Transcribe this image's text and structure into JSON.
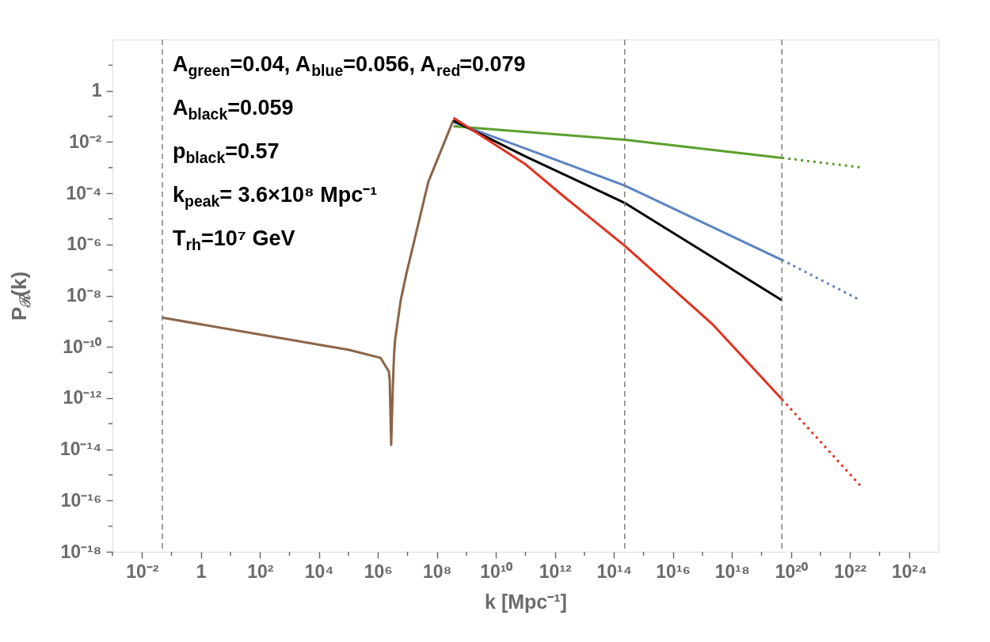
{
  "chart_data": {
    "type": "line",
    "xlabel": "k [Mpc⁻¹]",
    "ylabel": "P$_{ℛ}$(k)",
    "xlim": [
      0.001,
      1e+25
    ],
    "ylim": [
      1e-18,
      100
    ],
    "xticks": [
      {
        "value": 0.001,
        "label": null
      },
      {
        "value": 0.01,
        "label": "10⁻²"
      },
      {
        "value": 0.1,
        "label": null
      },
      1,
      {
        "value": 10,
        "label": null
      },
      {
        "value": 100,
        "label": "10²"
      },
      {
        "value": 1000,
        "label": null
      },
      {
        "value": 10000.0,
        "label": "10⁴"
      },
      {
        "value": 100000.0,
        "label": null
      },
      {
        "value": 1000000.0,
        "label": "10⁶"
      },
      {
        "value": 10000000.0,
        "label": null
      },
      {
        "value": 100000000.0,
        "label": "10⁸"
      },
      {
        "value": 1000000000.0,
        "label": null
      },
      {
        "value": 10000000000.0,
        "label": "10¹⁰"
      },
      {
        "value": 100000000000.0,
        "label": null
      },
      {
        "value": 1000000000000.0,
        "label": "10¹²"
      },
      {
        "value": 10000000000000.0,
        "label": null
      },
      {
        "value": 100000000000000.0,
        "label": "10¹⁴"
      },
      {
        "value": 1000000000000000.0,
        "label": null
      },
      {
        "value": 1e+16,
        "label": "10¹⁶"
      },
      {
        "value": 1e+17,
        "label": null
      },
      {
        "value": 1e+18,
        "label": "10¹⁸"
      },
      {
        "value": 1e+19,
        "label": null
      },
      {
        "value": 1e+20,
        "label": "10²⁰"
      },
      {
        "value": 1e+21,
        "label": null
      },
      {
        "value": 1e+22,
        "label": "10²²"
      },
      {
        "value": 1e+23,
        "label": null
      },
      {
        "value": 1e+24,
        "label": "10²⁴"
      }
    ],
    "yticks": [
      {
        "value": 10,
        "label": null
      },
      1,
      {
        "value": 0.1,
        "label": null
      },
      {
        "value": 0.01,
        "label": "10⁻²"
      },
      {
        "value": 0.001,
        "label": null
      },
      {
        "value": 0.0001,
        "label": "10⁻⁴"
      },
      {
        "value": 1e-05,
        "label": null
      },
      {
        "value": 1e-06,
        "label": "10⁻⁶"
      },
      {
        "value": 1e-07,
        "label": null
      },
      {
        "value": 1e-08,
        "label": "10⁻⁸"
      },
      {
        "value": 1e-09,
        "label": null
      },
      {
        "value": 1e-10,
        "label": "10⁻¹⁰"
      },
      {
        "value": 1e-11,
        "label": null
      },
      {
        "value": 1e-12,
        "label": "10⁻¹²"
      },
      {
        "value": 1e-13,
        "label": null
      },
      {
        "value": 1e-14,
        "label": "10⁻¹⁴"
      },
      {
        "value": 1e-15,
        "label": null
      },
      {
        "value": 1e-16,
        "label": "10⁻¹⁶"
      },
      {
        "value": 1e-17,
        "label": null
      },
      {
        "value": 1e-18,
        "label": "10⁻¹⁸"
      }
    ],
    "log": "xy",
    "grid": false,
    "legend": false,
    "marker": "none",
    "series": [
      {
        "color": "#8c6447",
        "line_style": "solid",
        "x": [
          0.049,
          105000.0,
          1230000.0,
          2340000.0,
          2500000.0,
          2800000.0,
          3200000.0,
          3500000.0,
          3800000.0,
          5900000.0,
          9100000.0,
          51000000.0,
          360000000.0
        ],
        "values": [
          1.38e-09,
          7.6e-11,
          3.7e-11,
          1.1e-11,
          5e-12,
          1.5e-14,
          3.2e-12,
          5e-11,
          1.9e-10,
          6.6e-09,
          6.9e-08,
          0.00028,
          0.072
        ]
      },
      {
        "color": "#5aa02c",
        "line_style": "solid",
        "x": [
          360000000.0,
          230000000000000.0,
          4.9e+19
        ],
        "values": [
          0.041,
          0.0123,
          0.0024
        ]
      },
      {
        "color": "#5aa02c",
        "line_style": "dotted",
        "x": [
          4.9e+19,
          2.4e+22
        ],
        "values": [
          0.0024,
          0.00102
        ]
      },
      {
        "color": "#5b84c4",
        "line_style": "solid",
        "x": [
          360000000.0,
          100000000000.0,
          230000000000000.0,
          4.9e+19
        ],
        "values": [
          0.059,
          0.0056,
          0.0002,
          2.5e-07
        ]
      },
      {
        "color": "#5b84c4",
        "line_style": "dotted",
        "x": [
          4.9e+19,
          2e+22
        ],
        "values": [
          2.5e-07,
          7.1e-09
        ]
      },
      {
        "color": "#000000",
        "line_style": "solid",
        "x": [
          360000000.0,
          100000000000.0,
          230000000000000.0,
          4.9e+19
        ],
        "values": [
          0.068,
          0.00275,
          4.2e-05,
          6.6e-09
        ]
      },
      {
        "color": "#e1331f",
        "line_style": "solid",
        "x": [
          360000000.0,
          100000000000.0,
          2200000000000.0,
          230000000000000.0,
          2.3e+17,
          4.9e+19
        ],
        "values": [
          0.089,
          0.00135,
          6.8e-05,
          8.9e-07,
          7.2e-10,
          9.1e-13
        ]
      },
      {
        "color": "#e1331f",
        "line_style": "dotted",
        "x": [
          4.9e+19,
          2.4e+22
        ],
        "values": [
          9.1e-13,
          3.5e-16
        ]
      }
    ],
    "ref_lines": [
      {
        "axis": "x",
        "value": 0.049,
        "label": null,
        "color": "#808080",
        "line_style": "dashed"
      },
      {
        "axis": "x",
        "value": 230000000000000.0,
        "label": null,
        "color": "#808080",
        "line_style": "dashed"
      },
      {
        "axis": "x",
        "value": 4.9e+19,
        "label": null,
        "color": "#808080",
        "line_style": "dashed"
      }
    ],
    "annotations": [
      "A$_{green}$=0.04, A$_{blue}$=0.056, A$_{red}$=0.079",
      "A$_{black}$=0.059",
      "p$_{black}$=0.57",
      "k$_{peak}$= 3.6×10⁸ Mpc⁻¹",
      "T$_{rh}$=10⁷ GeV"
    ]
  }
}
